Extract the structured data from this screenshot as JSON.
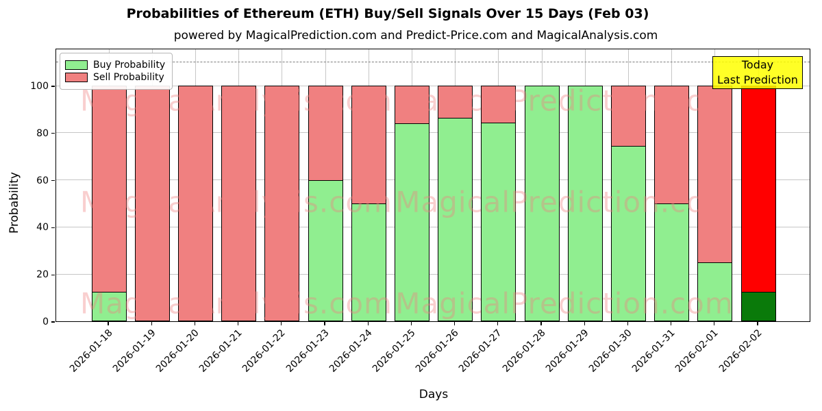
{
  "title": "Probabilities of Ethereum (ETH) Buy/Sell Signals Over 15 Days (Feb 03)",
  "subtitle": "powered by MagicalPrediction.com and Predict-Price.com and MagicalAnalysis.com",
  "legend": {
    "items": [
      {
        "label": "Buy Probability",
        "color": "#90EE90"
      },
      {
        "label": "Sell Probability",
        "color": "#F08080"
      }
    ]
  },
  "annotation": {
    "line1": "Today",
    "line2": "Last Prediction",
    "bg_color": "#FFFF00",
    "border_color": "#000000"
  },
  "watermarks": {
    "left_text": "MagicalAnalysis.com",
    "right_text": "MagicalPrediction.com",
    "color": "#F08080"
  },
  "chart_data": {
    "type": "bar",
    "stacked": true,
    "categories": [
      "2026-01-18",
      "2026-01-19",
      "2026-01-20",
      "2026-01-21",
      "2026-01-22",
      "2026-01-23",
      "2026-01-24",
      "2026-01-25",
      "2026-01-26",
      "2026-01-27",
      "2026-01-28",
      "2026-01-29",
      "2026-01-30",
      "2026-01-31",
      "2026-02-01",
      "2026-02-02"
    ],
    "series": [
      {
        "name": "Buy Probability",
        "color": "#90EE90",
        "values": [
          12.5,
          0,
          0,
          0,
          0,
          60,
          50,
          84,
          86.5,
          84.5,
          100,
          100,
          74.5,
          50,
          25,
          12.5
        ]
      },
      {
        "name": "Sell Probability",
        "color": "#F08080",
        "values": [
          87.5,
          100,
          100,
          100,
          100,
          40,
          50,
          16,
          13.5,
          15.5,
          0,
          0,
          25.5,
          50,
          75,
          87.5
        ]
      }
    ],
    "today_bar": {
      "index": 15,
      "buy_color": "#0A7A0A",
      "sell_color": "#FF0000"
    },
    "xlabel": "Days",
    "ylabel": "Probability",
    "yticks": [
      0,
      20,
      40,
      60,
      80,
      100
    ],
    "ylim": [
      0,
      116
    ],
    "dashed_line_y": 110,
    "grid": true,
    "legend_position": "upper left",
    "bar_edge_color": "#000000"
  }
}
